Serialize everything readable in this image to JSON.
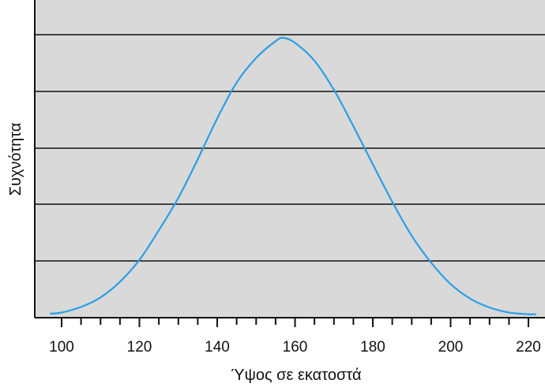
{
  "chart_data": {
    "type": "line",
    "xlabel": "Ύψος σε εκατοστά",
    "ylabel": "Συχνότητα",
    "xlim": [
      96,
      222
    ],
    "ylim": [
      0,
      5.5
    ],
    "x_ticks": [
      100,
      120,
      140,
      160,
      180,
      200,
      220
    ],
    "x_minor_tick_step": 5,
    "y_gridlines": [
      1,
      2,
      3,
      4,
      5
    ],
    "y_tick_labels_shown": false,
    "grid": true,
    "series": [
      {
        "x": [
          97,
          100,
          105,
          110,
          115,
          120,
          125,
          130,
          135,
          140,
          145,
          150,
          155,
          157,
          160,
          165,
          170,
          175,
          180,
          185,
          190,
          195,
          200,
          205,
          210,
          215,
          220,
          222
        ],
        "y": [
          0.03,
          0.05,
          0.15,
          0.32,
          0.6,
          0.99,
          1.52,
          2.1,
          2.79,
          3.52,
          4.16,
          4.6,
          4.9,
          4.96,
          4.87,
          4.55,
          4.03,
          3.38,
          2.7,
          2.03,
          1.42,
          0.94,
          0.56,
          0.3,
          0.14,
          0.05,
          0.02,
          0.02
        ]
      }
    ]
  },
  "colors": {
    "plot_background": "#d9d9d9",
    "line": "#2b9fe6",
    "gridline": "#111111",
    "axis": "#111111"
  }
}
